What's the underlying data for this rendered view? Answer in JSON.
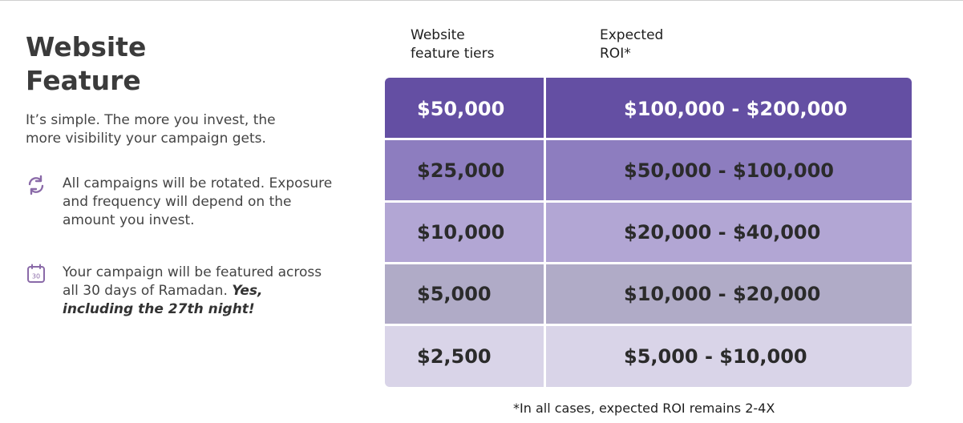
{
  "title": {
    "line1": "Website",
    "line2": "Feature"
  },
  "intro": "It’s simple. The more you invest, the more visibility your campaign gets.",
  "bullets": [
    {
      "icon": "rotate-icon",
      "text": "All campaigns will be rotated. Exposure and frequency will depend on the amount you invest."
    },
    {
      "icon": "calendar-30-icon",
      "icon_label": "30",
      "text": "Your campaign will be featured across all 30 days of Ramadan.",
      "emphasis": "Yes, including the 27th night!"
    }
  ],
  "table": {
    "headers": {
      "tiers": [
        "Website",
        "feature tiers"
      ],
      "roi": [
        "Expected",
        "ROI*"
      ]
    },
    "rows": [
      {
        "tier": "$50,000",
        "roi": "$100,000 - $200,000",
        "bg": "#644fa3",
        "fg": "#ffffff"
      },
      {
        "tier": "$25,000",
        "roi": "$50,000 - $100,000",
        "bg": "#8d7dbf",
        "fg": "#2b2b2b"
      },
      {
        "tier": "$10,000",
        "roi": "$20,000 - $40,000",
        "bg": "#b2a6d4",
        "fg": "#2b2b2b"
      },
      {
        "tier": "$5,000",
        "roi": "$10,000 - $20,000",
        "bg": "#b0abc7",
        "fg": "#2b2b2b"
      },
      {
        "tier": "$2,500",
        "roi": "$5,000 - $10,000",
        "bg": "#d9d4e8",
        "fg": "#2b2b2b"
      }
    ]
  },
  "footnote": "*In all cases, expected ROI remains 2-4X",
  "colors": {
    "icon_accent": "#8a6aa8"
  }
}
